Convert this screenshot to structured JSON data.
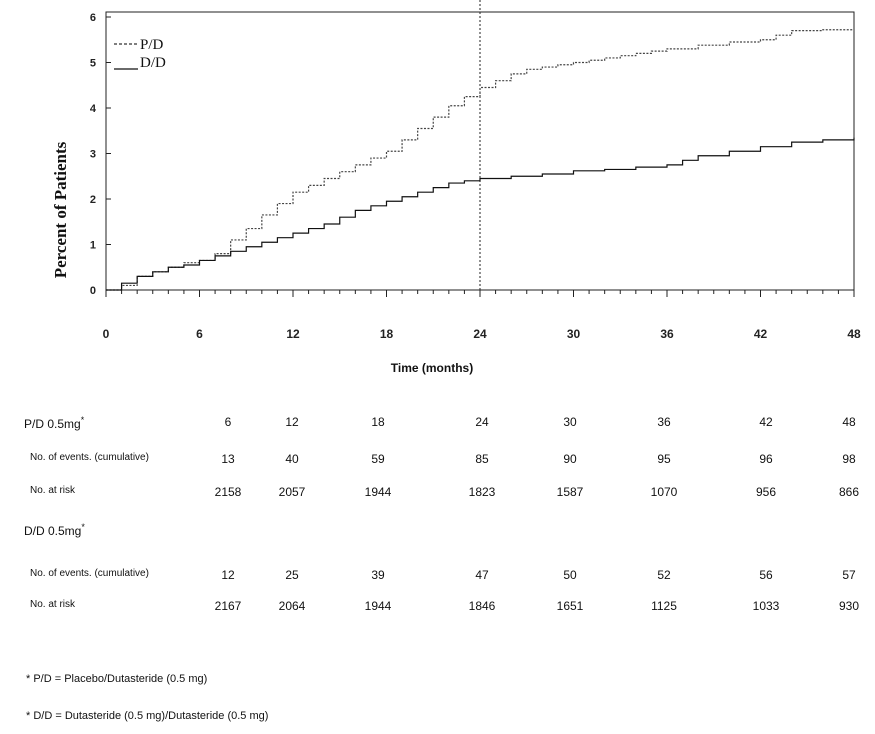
{
  "chart_data": {
    "type": "line",
    "title": "",
    "xlabel": "Time (months)",
    "ylabel": "Percent of Patients",
    "xlim": [
      0,
      48
    ],
    "ylim": [
      0,
      6
    ],
    "x_ticks": [
      "0",
      "6",
      "12",
      "18",
      "24",
      "30",
      "36",
      "42",
      "48"
    ],
    "y_ticks": [
      "0",
      "1",
      "2",
      "3",
      "4",
      "5",
      "6"
    ],
    "reference_line_x": 24,
    "legend_position": "top-left",
    "series": [
      {
        "name": "P/D",
        "style": "dashed",
        "x": [
          0,
          1,
          2,
          3,
          4,
          5,
          6,
          7,
          8,
          9,
          10,
          11,
          12,
          13,
          14,
          15,
          16,
          17,
          18,
          19,
          20,
          21,
          22,
          23,
          24,
          25,
          26,
          27,
          28,
          29,
          30,
          31,
          32,
          33,
          34,
          35,
          36,
          38,
          40,
          42,
          43,
          44,
          46,
          48
        ],
        "y": [
          0,
          0.1,
          0.3,
          0.4,
          0.5,
          0.6,
          0.65,
          0.8,
          1.1,
          1.35,
          1.65,
          1.9,
          2.15,
          2.3,
          2.45,
          2.6,
          2.75,
          2.9,
          3.05,
          3.3,
          3.55,
          3.8,
          4.05,
          4.25,
          4.45,
          4.6,
          4.75,
          4.85,
          4.9,
          4.95,
          5.0,
          5.05,
          5.1,
          5.15,
          5.2,
          5.25,
          5.3,
          5.38,
          5.45,
          5.5,
          5.6,
          5.7,
          5.72,
          5.75
        ]
      },
      {
        "name": "D/D",
        "style": "solid",
        "x": [
          0,
          1,
          2,
          3,
          4,
          5,
          6,
          7,
          8,
          9,
          10,
          11,
          12,
          13,
          14,
          15,
          16,
          17,
          18,
          19,
          20,
          21,
          22,
          23,
          24,
          26,
          28,
          30,
          32,
          34,
          36,
          37,
          38,
          40,
          42,
          44,
          46,
          48
        ],
        "y": [
          0,
          0.15,
          0.3,
          0.4,
          0.5,
          0.55,
          0.65,
          0.75,
          0.85,
          0.95,
          1.05,
          1.15,
          1.25,
          1.35,
          1.45,
          1.6,
          1.75,
          1.85,
          1.95,
          2.05,
          2.15,
          2.25,
          2.35,
          2.4,
          2.45,
          2.5,
          2.55,
          2.62,
          2.65,
          2.7,
          2.75,
          2.85,
          2.95,
          3.05,
          3.15,
          3.25,
          3.3,
          3.35
        ]
      }
    ]
  },
  "risk_table": {
    "pd_label": "P/D 0.5mg",
    "pd_marker": "*",
    "pd_time": [
      "6",
      "12",
      "18",
      "24",
      "30",
      "36",
      "42",
      "48"
    ],
    "events_label": "No. of events. (cumulative)",
    "pd_events": [
      "13",
      "40",
      "59",
      "85",
      "90",
      "95",
      "96",
      "98"
    ],
    "at_risk_label": "No. at risk",
    "pd_at_risk": [
      "2158",
      "2057",
      "1944",
      "1823",
      "1587",
      "1070",
      "956",
      "866"
    ],
    "dd_label": "D/D 0.5mg",
    "dd_marker": "*",
    "dd_events": [
      "12",
      "25",
      "39",
      "47",
      "50",
      "52",
      "56",
      "57"
    ],
    "dd_at_risk": [
      "2167",
      "2064",
      "1944",
      "1846",
      "1651",
      "1125",
      "1033",
      "930"
    ]
  },
  "footnotes": {
    "pd": "* P/D = Placebo/Dutasteride (0.5 mg)",
    "dd": "* D/D = Dutasteride (0.5 mg)/Dutasteride (0.5 mg)"
  }
}
